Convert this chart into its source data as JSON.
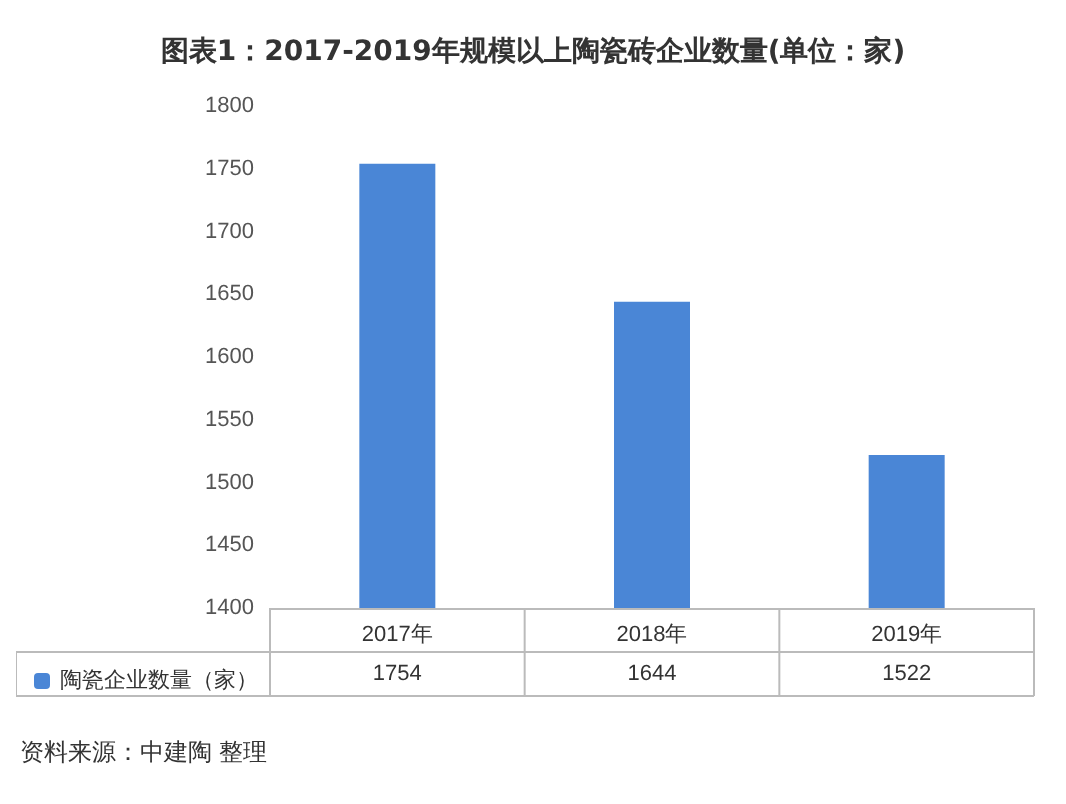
{
  "chart_data": {
    "type": "bar",
    "title": "图表1：2017-2019年规模以上陶瓷砖企业数量(单位：家)",
    "categories": [
      "2017年",
      "2018年",
      "2019年"
    ],
    "series": [
      {
        "name": "陶瓷企业数量（家）",
        "color": "#4a86d6",
        "values": [
          1754,
          1644,
          1522
        ]
      }
    ],
    "ylim": [
      1400,
      1800
    ],
    "yticks": [
      1400,
      1450,
      1500,
      1550,
      1600,
      1650,
      1700,
      1750,
      1800
    ],
    "grid": false,
    "legend": "bottom left",
    "data_labels": true,
    "annotations": [
      "资料来源：中建陶 整理"
    ]
  }
}
